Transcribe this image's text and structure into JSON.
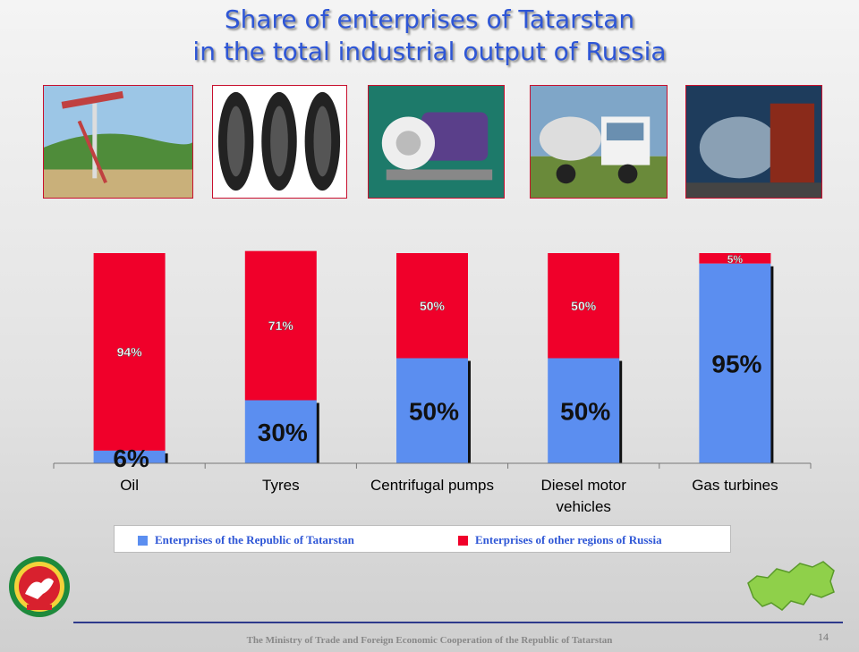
{
  "title_line1": "Share of enterprises of Tatarstan",
  "title_line2": "in the total industrial output of Russia",
  "photos": [
    {
      "name": "oil-pump-photo"
    },
    {
      "name": "tyres-photo"
    },
    {
      "name": "pump-photo"
    },
    {
      "name": "truck-photo"
    },
    {
      "name": "turbine-photo"
    }
  ],
  "colors": {
    "tatarstan": "#5b8ef0",
    "other": "#f0002a",
    "title": "#2e56d6"
  },
  "chart_data": {
    "type": "bar",
    "stacked": true,
    "categories": [
      "Oil",
      "Tyres",
      "Centrifugal pumps",
      "Diesel motor vehicles",
      "Gas turbines"
    ],
    "category_lines": [
      [
        "Oil"
      ],
      [
        "Tyres"
      ],
      [
        "Centrifugal pumps"
      ],
      [
        "Diesel motor",
        "vehicles"
      ],
      [
        "Gas turbines"
      ]
    ],
    "series": [
      {
        "name": "Enterprises of the Republic of Tatarstan",
        "values": [
          6,
          30,
          50,
          50,
          95
        ],
        "labels": [
          "6%",
          "30%",
          "50%",
          "50%",
          "95%"
        ]
      },
      {
        "name": "Enterprises of other regions of Russia",
        "values": [
          94,
          71,
          50,
          50,
          5
        ],
        "labels": [
          "94%",
          "71%",
          "50%",
          "50%",
          "5%"
        ]
      }
    ],
    "ylim": [
      0,
      100
    ],
    "legend": "bottom",
    "grid": false
  },
  "footer": "The Ministry of Trade and Foreign Economic Cooperation of the Republic of Tatarstan",
  "page_number": "14"
}
